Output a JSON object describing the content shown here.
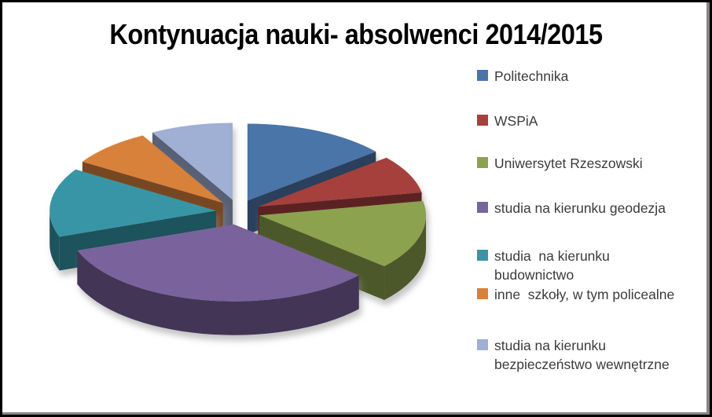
{
  "chart_data": {
    "type": "pie",
    "projection": "3d-exploded",
    "title": "Kontynuacja nauki- absolwenci 2014/2015",
    "legend_position": "right",
    "start_angle_deg": 0,
    "direction": "clockwise",
    "data_labels_shown": false,
    "note": "slice values estimated from slice angles; no numeric labels are visible in the chart",
    "slices": [
      {
        "label": "Politechnika",
        "value": 14,
        "color": "#4A74A8"
      },
      {
        "label": "WSPiA",
        "value": 8,
        "color": "#A5413C"
      },
      {
        "label": "Uniwersytet Rzeszowski",
        "value": 14.5,
        "color": "#8CA24F"
      },
      {
        "label": "studia na kierunku geodezja",
        "value": 33,
        "color": "#7A639D"
      },
      {
        "label": "studia  na kierunku\nbudownictwo",
        "value": 14.5,
        "color": "#3995A6"
      },
      {
        "label": "inne  szkoły, w tym policealne",
        "value": 8,
        "color": "#D8813A"
      },
      {
        "label": "studia na kierunku\nbezpieczeństwo wewnętrzne",
        "value": 8,
        "color": "#A0AFD4"
      }
    ]
  }
}
